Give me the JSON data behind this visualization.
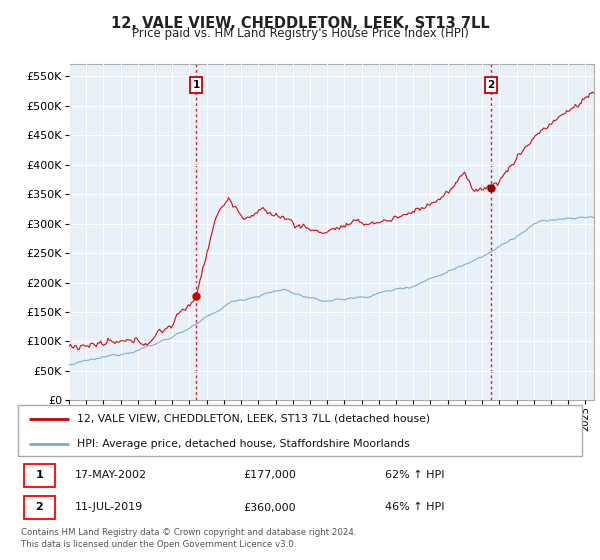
{
  "title": "12, VALE VIEW, CHEDDLETON, LEEK, ST13 7LL",
  "subtitle": "Price paid vs. HM Land Registry's House Price Index (HPI)",
  "ytick_values": [
    0,
    50000,
    100000,
    150000,
    200000,
    250000,
    300000,
    350000,
    400000,
    450000,
    500000,
    550000
  ],
  "ylim": [
    0,
    570000
  ],
  "sale1_date": "17-MAY-2002",
  "sale1_price": 177000,
  "sale1_label": "62% ↑ HPI",
  "sale1_year": 2002.375,
  "sale2_date": "11-JUL-2019",
  "sale2_price": 360000,
  "sale2_label": "46% ↑ HPI",
  "sale2_year": 2019.528,
  "legend_property": "12, VALE VIEW, CHEDDLETON, LEEK, ST13 7LL (detached house)",
  "legend_hpi": "HPI: Average price, detached house, Staffordshire Moorlands",
  "footer": "Contains HM Land Registry data © Crown copyright and database right 2024.\nThis data is licensed under the Open Government Licence v3.0.",
  "property_color": "#cc0000",
  "hpi_color": "#7aaad0",
  "background_color": "#ffffff",
  "plot_bg_color": "#e8f0f8",
  "grid_color": "#ffffff"
}
